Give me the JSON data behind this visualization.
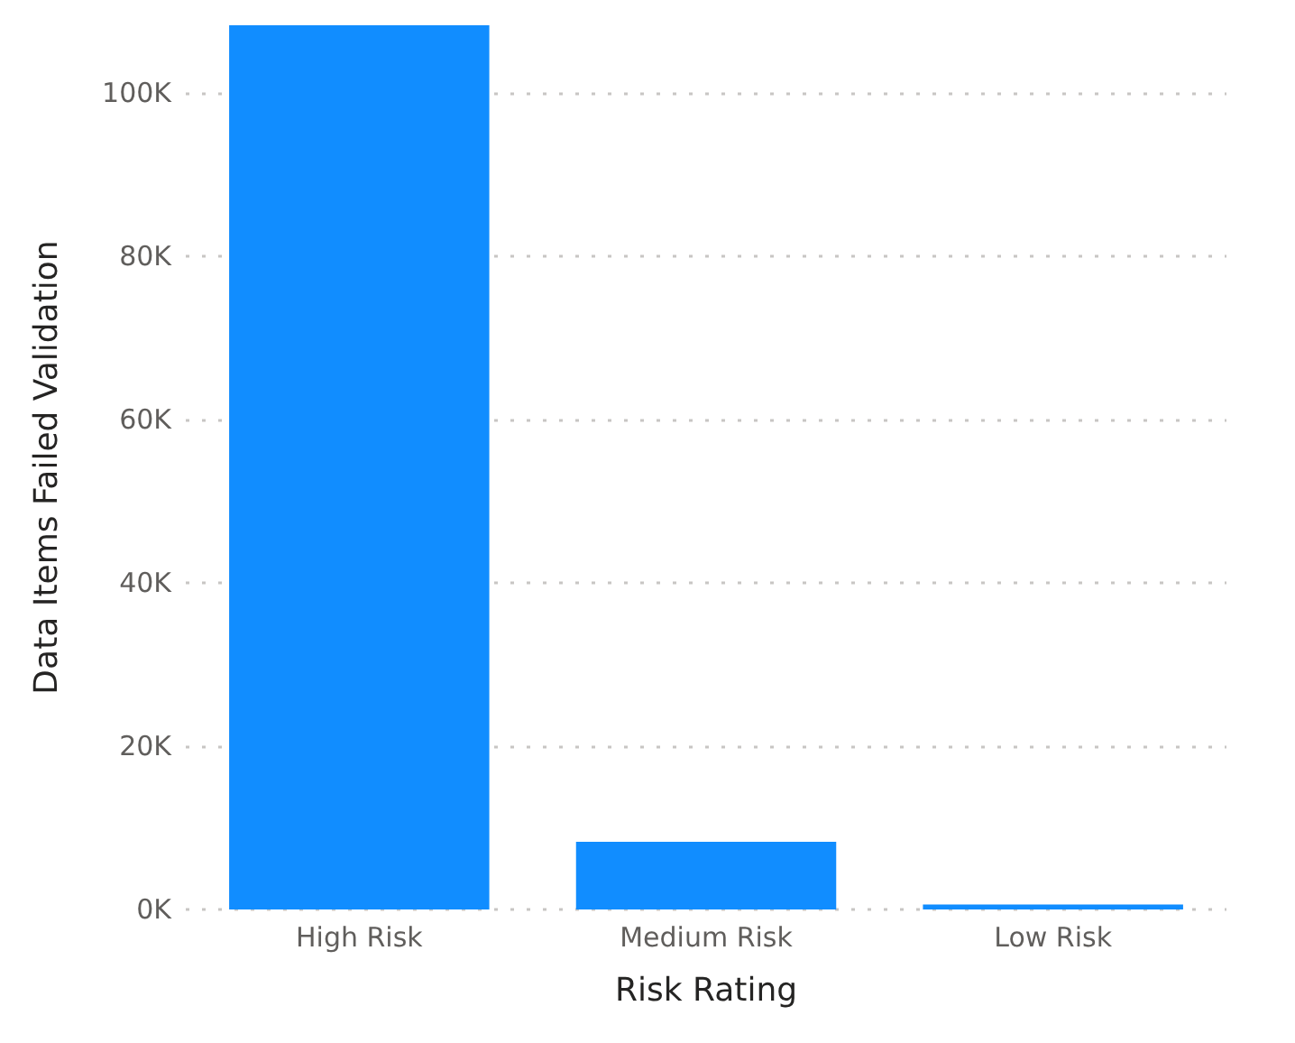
{
  "chart_data": {
    "type": "bar",
    "xlabel": "Risk Rating",
    "ylabel": "Data Items Failed Validation",
    "categories": [
      "High Risk",
      "Medium Risk",
      "Low Risk"
    ],
    "values": [
      108300,
      8300,
      600
    ],
    "color": "#118dff",
    "ylim": [
      0,
      108300
    ],
    "yticks": [
      {
        "value": 0,
        "label": "0K"
      },
      {
        "value": 20000,
        "label": "20K"
      },
      {
        "value": 40000,
        "label": "40K"
      },
      {
        "value": 60000,
        "label": "60K"
      },
      {
        "value": 80000,
        "label": "80K"
      },
      {
        "value": 100000,
        "label": "100K"
      }
    ],
    "grid": "y"
  }
}
